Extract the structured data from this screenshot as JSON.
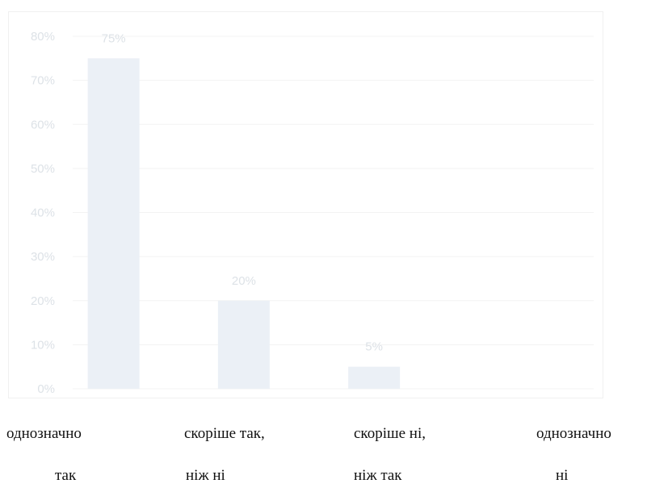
{
  "chart_data": {
    "type": "bar",
    "categories": [
      [
        "однозначно",
        "так"
      ],
      [
        "скоріше так,",
        "ніж  ні"
      ],
      [
        "скоріше ні,",
        "ніж так"
      ],
      [
        "однозначно",
        "ні"
      ]
    ],
    "values": [
      75,
      20,
      5,
      0
    ],
    "data_labels": [
      "75%",
      "20%",
      "5%",
      ""
    ],
    "yticks": [
      "0%",
      "10%",
      "20%",
      "30%",
      "40%",
      "50%",
      "60%",
      "70%",
      "80%"
    ],
    "ylim": [
      0,
      80
    ],
    "grid": true,
    "colors": {
      "bar": "#ebf0f6",
      "grid": "#f3f3f3",
      "tick_text": "#dde2e7"
    }
  }
}
